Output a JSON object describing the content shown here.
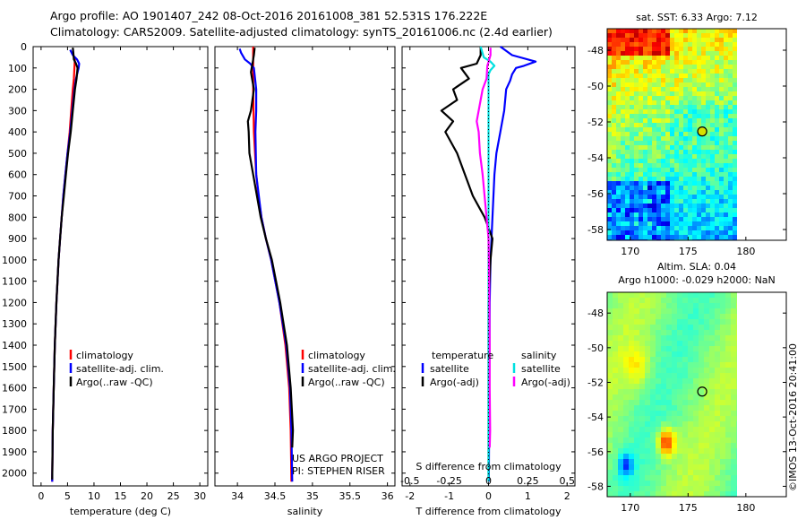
{
  "header": {
    "line1": "Argo profile: AO 1901407_242 08-Oct-2016 20161008_381 52.531S 176.222E",
    "line2": "Climatology: CARS2009. Satellite-adjusted climatology: synTS_20161006.nc (2.4d earlier)"
  },
  "chart_data": [
    {
      "type": "line",
      "panel": "temperature",
      "xlabel": "temperature (deg C)",
      "ylabel": "",
      "xlim": [
        -1.5,
        31.5
      ],
      "ylim": [
        0,
        2060
      ],
      "y_reversed": true,
      "xticks": [
        0,
        5,
        10,
        15,
        20,
        25,
        30
      ],
      "yticks": [
        0,
        100,
        200,
        300,
        400,
        500,
        600,
        700,
        800,
        900,
        1000,
        1100,
        1200,
        1300,
        1400,
        1500,
        1600,
        1700,
        1800,
        1900,
        2000
      ],
      "legend": [
        "climatology",
        "satellite-adj. clim.",
        "Argo(..raw -QC)"
      ],
      "legend_placement": "lower-center",
      "series": [
        {
          "name": "climatology",
          "color": "#ff0000",
          "y": [
            50,
            100,
            150,
            200,
            300,
            400,
            500,
            600,
            700,
            800,
            900,
            1000,
            1200,
            1400,
            1600,
            1800,
            2040
          ],
          "x": [
            6.4,
            6.3,
            6.2,
            6.0,
            5.7,
            5.4,
            5.0,
            4.6,
            4.2,
            3.9,
            3.6,
            3.3,
            2.9,
            2.6,
            2.4,
            2.2,
            2.1
          ]
        },
        {
          "name": "satellite-adj. clim.",
          "color": "#0000ff",
          "y": [
            15,
            40,
            60,
            80,
            100,
            150,
            200,
            300,
            400,
            500,
            600,
            700,
            800,
            900,
            1000,
            1200,
            1400,
            1600,
            1800,
            2040
          ],
          "x": [
            5.5,
            6.0,
            6.8,
            7.2,
            7.1,
            6.6,
            6.3,
            5.9,
            5.5,
            5.0,
            4.6,
            4.2,
            3.9,
            3.6,
            3.3,
            2.9,
            2.6,
            2.4,
            2.2,
            2.1
          ]
        },
        {
          "name": "Argo(..raw -QC)",
          "color": "#000000",
          "y": [
            5,
            30,
            60,
            80,
            100,
            150,
            200,
            300,
            400,
            500,
            600,
            700,
            800,
            900,
            1000,
            1200,
            1400,
            1600,
            1800,
            2030
          ],
          "x": [
            6.0,
            6.1,
            6.2,
            6.6,
            6.9,
            6.7,
            6.4,
            6.0,
            5.6,
            5.1,
            4.7,
            4.3,
            3.9,
            3.6,
            3.3,
            2.9,
            2.6,
            2.4,
            2.2,
            2.1
          ]
        }
      ]
    },
    {
      "type": "line",
      "panel": "salinity",
      "xlabel": "salinity",
      "xlim": [
        33.7,
        36.1
      ],
      "ylim": [
        0,
        2060
      ],
      "y_reversed": true,
      "xticks": [
        34,
        34.5,
        35,
        35.5,
        36
      ],
      "legend": [
        "climatology",
        "satellite-adj. clim.",
        "Argo(..raw -QC)"
      ],
      "legend_placement": "lower-center",
      "annotation": [
        "US ARGO PROJECT",
        "PI: STEPHEN RISER"
      ],
      "series": [
        {
          "name": "climatology",
          "color": "#ff0000",
          "y": [
            0,
            200,
            400,
            600,
            700,
            800,
            900,
            1000,
            1200,
            1400,
            1600,
            1800,
            2040
          ],
          "x": [
            34.21,
            34.21,
            34.22,
            34.25,
            34.28,
            34.32,
            34.38,
            34.45,
            34.56,
            34.64,
            34.69,
            34.71,
            34.72
          ]
        },
        {
          "name": "satellite-adj. clim.",
          "color": "#0000ff",
          "y": [
            10,
            30,
            60,
            80,
            100,
            200,
            300,
            400,
            600,
            800,
            900,
            1000,
            1200,
            1400,
            1600,
            1800,
            2040
          ],
          "x": [
            34.03,
            34.05,
            34.1,
            34.17,
            34.22,
            34.25,
            34.25,
            34.24,
            34.25,
            34.32,
            34.38,
            34.45,
            34.56,
            34.65,
            34.7,
            34.72,
            34.73
          ]
        },
        {
          "name": "Argo(..raw -QC)",
          "color": "#000000",
          "y": [
            5,
            40,
            80,
            120,
            200,
            300,
            350,
            400,
            500,
            600,
            700,
            800,
            900,
            1000,
            1200,
            1400,
            1600,
            1800,
            1880
          ],
          "x": [
            34.23,
            34.22,
            34.2,
            34.18,
            34.22,
            34.18,
            34.14,
            34.15,
            34.16,
            34.21,
            34.26,
            34.31,
            34.38,
            34.46,
            34.57,
            34.66,
            34.71,
            34.74,
            34.73
          ]
        }
      ]
    },
    {
      "type": "line",
      "panel": "difference",
      "xlabel": "T difference from climatology",
      "xlabel_top": "S difference from climatology",
      "xlim": [
        -2.2,
        2.2
      ],
      "ylim": [
        0,
        2060
      ],
      "y_reversed": true,
      "xticks": [
        -2,
        -1,
        0,
        1,
        2
      ],
      "xticks_top": [
        "-0.5",
        "-0.25",
        "0",
        "0.25",
        "0.5"
      ],
      "legend_headers": [
        "temperature",
        "salinity"
      ],
      "legend": [
        "satellite",
        "Argo(-adj)",
        "satellite",
        "Argo(-adj)"
      ],
      "series": [
        {
          "name": "satellite",
          "group": "temperature",
          "color": "#0000ff",
          "y": [
            0,
            40,
            70,
            90,
            100,
            130,
            160,
            200,
            300,
            400,
            500,
            600,
            800,
            1000,
            1200,
            1600,
            2000,
            2040
          ],
          "x": [
            0.3,
            0.6,
            1.2,
            0.9,
            0.7,
            0.6,
            0.55,
            0.45,
            0.4,
            0.3,
            0.2,
            0.15,
            0.1,
            0.05,
            0.03,
            0.02,
            0.01,
            0.01
          ]
        },
        {
          "name": "Argo(-adj)",
          "group": "temperature",
          "color": "#000000",
          "y": [
            0,
            40,
            80,
            100,
            150,
            200,
            250,
            300,
            350,
            400,
            500,
            600,
            700,
            800,
            900,
            1000,
            1200,
            1400,
            1600,
            1800,
            2030
          ],
          "x": [
            -0.2,
            -0.2,
            -0.3,
            -0.7,
            -0.5,
            -0.9,
            -0.8,
            -1.2,
            -0.9,
            -1.1,
            -0.8,
            -0.6,
            -0.4,
            -0.1,
            0.1,
            0.05,
            0.0,
            0.0,
            0.0,
            0.0,
            0.0
          ]
        },
        {
          "name": "satellite",
          "group": "salinity",
          "color": "#00e0e0",
          "y": [
            0,
            50,
            70,
            90,
            110,
            130,
            200,
            400,
            600,
            800,
            1000,
            1400,
            1800,
            2040
          ],
          "x": [
            -0.2,
            -0.12,
            0.05,
            0.15,
            0.05,
            0.0,
            0.0,
            0.0,
            0.0,
            0.0,
            0.0,
            0.0,
            0.0,
            0.0
          ]
        },
        {
          "name": "Argo(-adj)",
          "group": "salinity",
          "color": "#ff00ff",
          "y": [
            5,
            40,
            90,
            150,
            200,
            250,
            300,
            350,
            400,
            500,
            600,
            700,
            800,
            900,
            1000,
            1200,
            1400,
            1600,
            1800,
            1880
          ],
          "x": [
            0.05,
            0.05,
            -0.03,
            -0.05,
            -0.15,
            -0.2,
            -0.25,
            -0.3,
            -0.25,
            -0.22,
            -0.15,
            -0.1,
            -0.05,
            0.0,
            0.01,
            0.02,
            0.03,
            0.03,
            0.04,
            0.03
          ]
        }
      ]
    },
    {
      "type": "heatmap",
      "panel": "sst-map",
      "title": "sat. SST: 6.33 Argo: 7.12",
      "xlim": [
        168,
        183.5
      ],
      "ylim": [
        -58.6,
        -46.8
      ],
      "xticks": [
        170,
        175,
        180
      ],
      "yticks": [
        -48,
        -50,
        -52,
        -54,
        -56,
        -58
      ],
      "marker": {
        "lon": 176.222,
        "lat": -52.531
      }
    },
    {
      "type": "heatmap",
      "panel": "sla-map",
      "title": "Altim. SLA: 0.04",
      "subtitle": "Argo h1000: -0.029 h2000: NaN",
      "xlim": [
        168,
        183.5
      ],
      "ylim": [
        -58.6,
        -46.8
      ],
      "xticks": [
        170,
        175,
        180
      ],
      "yticks": [
        -48,
        -50,
        -52,
        -54,
        -56,
        -58
      ],
      "marker": {
        "lon": 176.222,
        "lat": -52.531
      }
    }
  ],
  "stamp": "©IMOS 13-Oct-2016 20:41:00"
}
